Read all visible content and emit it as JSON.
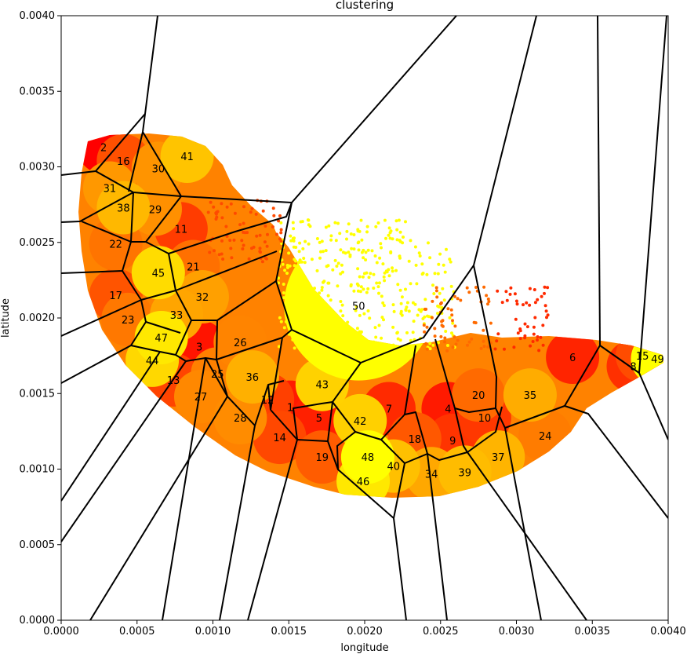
{
  "chart_data": {
    "type": "scatter",
    "title": "clustering",
    "xlabel": "longitude",
    "ylabel": "latitude",
    "xlim": [
      0.0,
      0.004
    ],
    "ylim": [
      0.0,
      0.004
    ],
    "x_ticks": [
      "0.0000",
      "0.0005",
      "0.0010",
      "0.0015",
      "0.0020",
      "0.0025",
      "0.0030",
      "0.0035",
      "0.0040"
    ],
    "y_ticks": [
      "0.0000",
      "0.0005",
      "0.0010",
      "0.0015",
      "0.0020",
      "0.0025",
      "0.0030",
      "0.0035",
      "0.0040"
    ],
    "grid": false,
    "colormap": [
      "#ff0000",
      "#ff6a00",
      "#ffa500",
      "#ffd200",
      "#ffff00"
    ],
    "cluster_labels": [
      {
        "id": "1",
        "x": 0.00151,
        "y": 0.00141,
        "color": "#ff1a00"
      },
      {
        "id": "2",
        "x": 0.00028,
        "y": 0.00313,
        "color": "#ff0000"
      },
      {
        "id": "3",
        "x": 0.00091,
        "y": 0.00181,
        "color": "#ff1400"
      },
      {
        "id": "4",
        "x": 0.00255,
        "y": 0.0014,
        "color": "#ff1a00"
      },
      {
        "id": "5",
        "x": 0.0017,
        "y": 0.00134,
        "color": "#ff2000"
      },
      {
        "id": "6",
        "x": 0.00337,
        "y": 0.00174,
        "color": "#ff2400"
      },
      {
        "id": "7",
        "x": 0.00216,
        "y": 0.0014,
        "color": "#ff2a00"
      },
      {
        "id": "8",
        "x": 0.00377,
        "y": 0.00168,
        "color": "#ff3000"
      },
      {
        "id": "9",
        "x": 0.00258,
        "y": 0.00119,
        "color": "#ff3400"
      },
      {
        "id": "10",
        "x": 0.00279,
        "y": 0.00134,
        "color": "#ff3800"
      },
      {
        "id": "11",
        "x": 0.00079,
        "y": 0.00259,
        "color": "#ff3c00"
      },
      {
        "id": "12",
        "x": 0.00136,
        "y": 0.00146,
        "color": "#ff4000"
      },
      {
        "id": "13",
        "x": 0.00074,
        "y": 0.00159,
        "color": "#ff4400"
      },
      {
        "id": "14",
        "x": 0.00144,
        "y": 0.00121,
        "color": "#ff4800"
      },
      {
        "id": "15",
        "x": 0.00383,
        "y": 0.00175,
        "color": "#ff4c00"
      },
      {
        "id": "16",
        "x": 0.00041,
        "y": 0.00304,
        "color": "#ff5000"
      },
      {
        "id": "17",
        "x": 0.00036,
        "y": 0.00215,
        "color": "#ff5400"
      },
      {
        "id": "18",
        "x": 0.00233,
        "y": 0.0012,
        "color": "#ff5800"
      },
      {
        "id": "19",
        "x": 0.00172,
        "y": 0.00108,
        "color": "#ff5c00"
      },
      {
        "id": "20",
        "x": 0.00275,
        "y": 0.00149,
        "color": "#ff6a00"
      },
      {
        "id": "21",
        "x": 0.00087,
        "y": 0.00234,
        "color": "#ff7000"
      },
      {
        "id": "22",
        "x": 0.00036,
        "y": 0.00249,
        "color": "#ff7400"
      },
      {
        "id": "23",
        "x": 0.00044,
        "y": 0.00199,
        "color": "#ff7800"
      },
      {
        "id": "24",
        "x": 0.00319,
        "y": 0.00122,
        "color": "#ff7c00"
      },
      {
        "id": "25",
        "x": 0.00103,
        "y": 0.00163,
        "color": "#ff8000"
      },
      {
        "id": "26",
        "x": 0.00118,
        "y": 0.00184,
        "color": "#ff8400"
      },
      {
        "id": "27",
        "x": 0.00092,
        "y": 0.00148,
        "color": "#ff8800"
      },
      {
        "id": "28",
        "x": 0.00118,
        "y": 0.00134,
        "color": "#ff8c00"
      },
      {
        "id": "29",
        "x": 0.00062,
        "y": 0.00272,
        "color": "#ff9000"
      },
      {
        "id": "30",
        "x": 0.00064,
        "y": 0.00299,
        "color": "#ff9400"
      },
      {
        "id": "31",
        "x": 0.00032,
        "y": 0.00286,
        "color": "#ff9800"
      },
      {
        "id": "32",
        "x": 0.00093,
        "y": 0.00214,
        "color": "#ffa000"
      },
      {
        "id": "33",
        "x": 0.00076,
        "y": 0.00202,
        "color": "#ffa500"
      },
      {
        "id": "34",
        "x": 0.00244,
        "y": 0.00097,
        "color": "#ffa800"
      },
      {
        "id": "35",
        "x": 0.00309,
        "y": 0.00149,
        "color": "#ffac00"
      },
      {
        "id": "36",
        "x": 0.00126,
        "y": 0.00161,
        "color": "#ffb000"
      },
      {
        "id": "37",
        "x": 0.00288,
        "y": 0.00108,
        "color": "#ffb400"
      },
      {
        "id": "38",
        "x": 0.00041,
        "y": 0.00273,
        "color": "#ffb800"
      },
      {
        "id": "39",
        "x": 0.00266,
        "y": 0.00098,
        "color": "#ffbc00"
      },
      {
        "id": "40",
        "x": 0.00219,
        "y": 0.00102,
        "color": "#ffc000"
      },
      {
        "id": "41",
        "x": 0.00083,
        "y": 0.00307,
        "color": "#ffc400"
      },
      {
        "id": "42",
        "x": 0.00197,
        "y": 0.00132,
        "color": "#ffd000"
      },
      {
        "id": "43",
        "x": 0.00172,
        "y": 0.00156,
        "color": "#ffd200"
      },
      {
        "id": "44",
        "x": 0.0006,
        "y": 0.00172,
        "color": "#ffd800"
      },
      {
        "id": "45",
        "x": 0.00064,
        "y": 0.0023,
        "color": "#ffdc00"
      },
      {
        "id": "46",
        "x": 0.00199,
        "y": 0.00092,
        "color": "#ffe800"
      },
      {
        "id": "47",
        "x": 0.00066,
        "y": 0.00187,
        "color": "#ffe800"
      },
      {
        "id": "48",
        "x": 0.00202,
        "y": 0.00108,
        "color": "#ffff00"
      },
      {
        "id": "49",
        "x": 0.00393,
        "y": 0.00173,
        "color": "#ffff00"
      },
      {
        "id": "50",
        "x": 0.00196,
        "y": 0.00208,
        "color": "#ffff00"
      }
    ]
  }
}
